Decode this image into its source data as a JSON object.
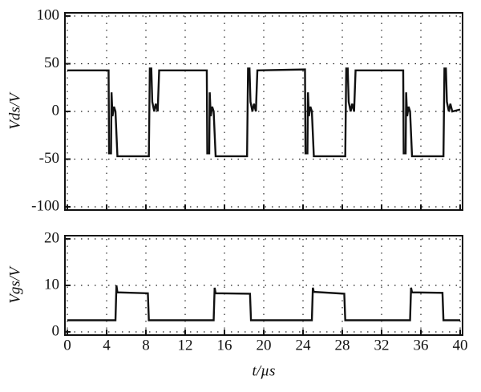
{
  "chart_data": [
    {
      "type": "line",
      "ylabel": "Vds/V",
      "xlim": [
        0,
        40
      ],
      "ylim": [
        -100,
        100
      ],
      "yticks": [
        100,
        50,
        0,
        -50,
        -100
      ],
      "grid": true,
      "series": [
        {
          "color": "#111111",
          "x": [
            0,
            4.2,
            4.25,
            4.45,
            4.5,
            4.6,
            4.75,
            4.9,
            5.1,
            8.3,
            8.4,
            8.55,
            8.65,
            8.85,
            9.0,
            9.2,
            9.35,
            14.2,
            14.25,
            14.45,
            14.5,
            14.6,
            14.75,
            14.9,
            15.1,
            18.3,
            18.4,
            18.55,
            18.65,
            18.85,
            19.0,
            19.2,
            19.35,
            24.2,
            24.25,
            24.45,
            24.5,
            24.6,
            24.75,
            24.9,
            25.1,
            28.3,
            28.4,
            28.55,
            28.65,
            28.85,
            29.0,
            29.2,
            29.35,
            34.2,
            34.25,
            34.45,
            34.5,
            34.6,
            34.75,
            34.9,
            35.1,
            38.3,
            38.4,
            38.55,
            38.65,
            38.85,
            39.0,
            39.2,
            40
          ],
          "values": [
            43,
            43,
            -44,
            -44,
            20,
            -5,
            5,
            0,
            -47,
            -47,
            45,
            45,
            10,
            0,
            8,
            0,
            43,
            43,
            -44,
            -44,
            20,
            -5,
            5,
            0,
            -47,
            -47,
            45,
            45,
            10,
            0,
            8,
            0,
            43,
            44,
            -44,
            -44,
            20,
            -5,
            5,
            0,
            -47,
            -47,
            45,
            45,
            10,
            0,
            8,
            0,
            43,
            43,
            -44,
            -44,
            20,
            -5,
            5,
            0,
            -47,
            -47,
            45,
            45,
            10,
            0,
            8,
            0,
            2
          ]
        }
      ]
    },
    {
      "type": "line",
      "ylabel": "Vgs/V",
      "xlabel": "t/µs",
      "xlim": [
        0,
        40
      ],
      "ylim": [
        0,
        20
      ],
      "yticks": [
        20,
        10,
        0
      ],
      "xticks": [
        0,
        4,
        8,
        12,
        16,
        20,
        24,
        28,
        32,
        36,
        40
      ],
      "grid": true,
      "series": [
        {
          "color": "#111111",
          "x": [
            0,
            4.9,
            5.0,
            5.1,
            8.2,
            8.3,
            14.9,
            15.0,
            15.1,
            18.6,
            18.7,
            24.9,
            25.0,
            25.1,
            28.2,
            28.3,
            34.9,
            35.0,
            35.1,
            38.2,
            38.3,
            40
          ],
          "values": [
            2.5,
            2.5,
            10,
            8.5,
            8.3,
            2.5,
            2.5,
            9.5,
            8.3,
            8.2,
            2.5,
            2.5,
            9.5,
            8.6,
            8.2,
            2.5,
            2.5,
            9.5,
            8.5,
            8.4,
            2.5,
            2.5
          ]
        }
      ]
    }
  ]
}
